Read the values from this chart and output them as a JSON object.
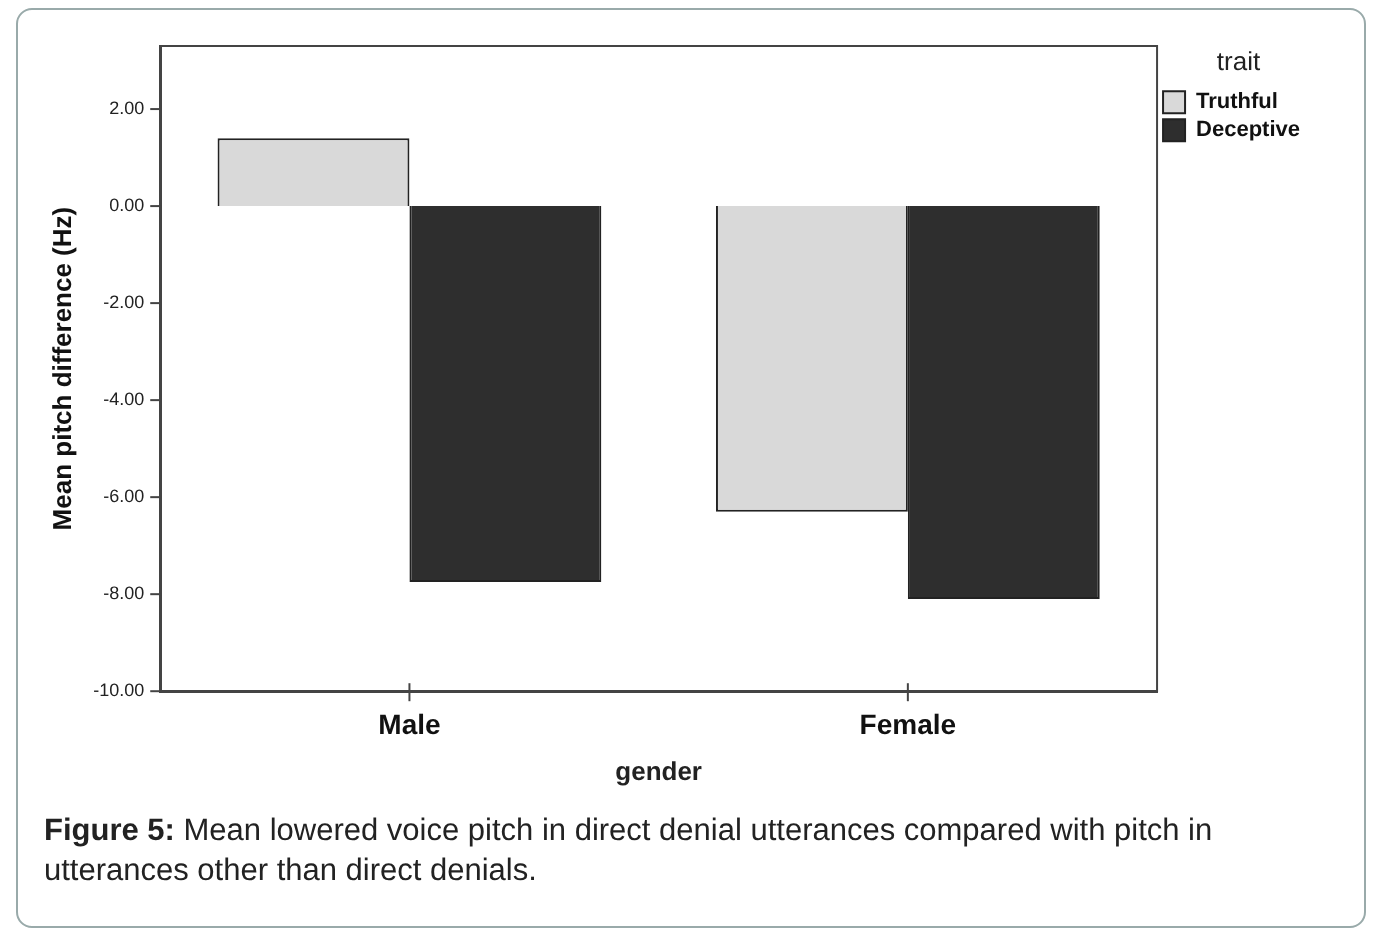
{
  "chart_data": {
    "type": "bar",
    "categories": [
      "Male",
      "Female"
    ],
    "series": [
      {
        "name": "Truthful",
        "color": "#d9d9d9",
        "values": [
          1.4,
          -6.3
        ]
      },
      {
        "name": "Deceptive",
        "color": "#2e2e2e",
        "values": [
          -7.75,
          -8.1
        ]
      }
    ],
    "xlabel": "gender",
    "ylabel": "Mean pitch difference (Hz)",
    "legend_title": "trait",
    "legend": "right",
    "ylim": [
      -10,
      3.3
    ],
    "yticks": [
      {
        "value": -10,
        "label": "-10.00"
      },
      {
        "value": -8,
        "label": "-8.00"
      },
      {
        "value": -6,
        "label": "-6.00"
      },
      {
        "value": -4,
        "label": "-4.00"
      },
      {
        "value": -2,
        "label": "-2.00"
      },
      {
        "value": 0,
        "label": "0.00"
      },
      {
        "value": 2,
        "label": "2.00"
      }
    ],
    "grid": false,
    "annotations": [
      "Figure 5: Mean lowered voice pitch in direct denial utterances compared with pitch in utterances other than direct denials."
    ]
  }
}
